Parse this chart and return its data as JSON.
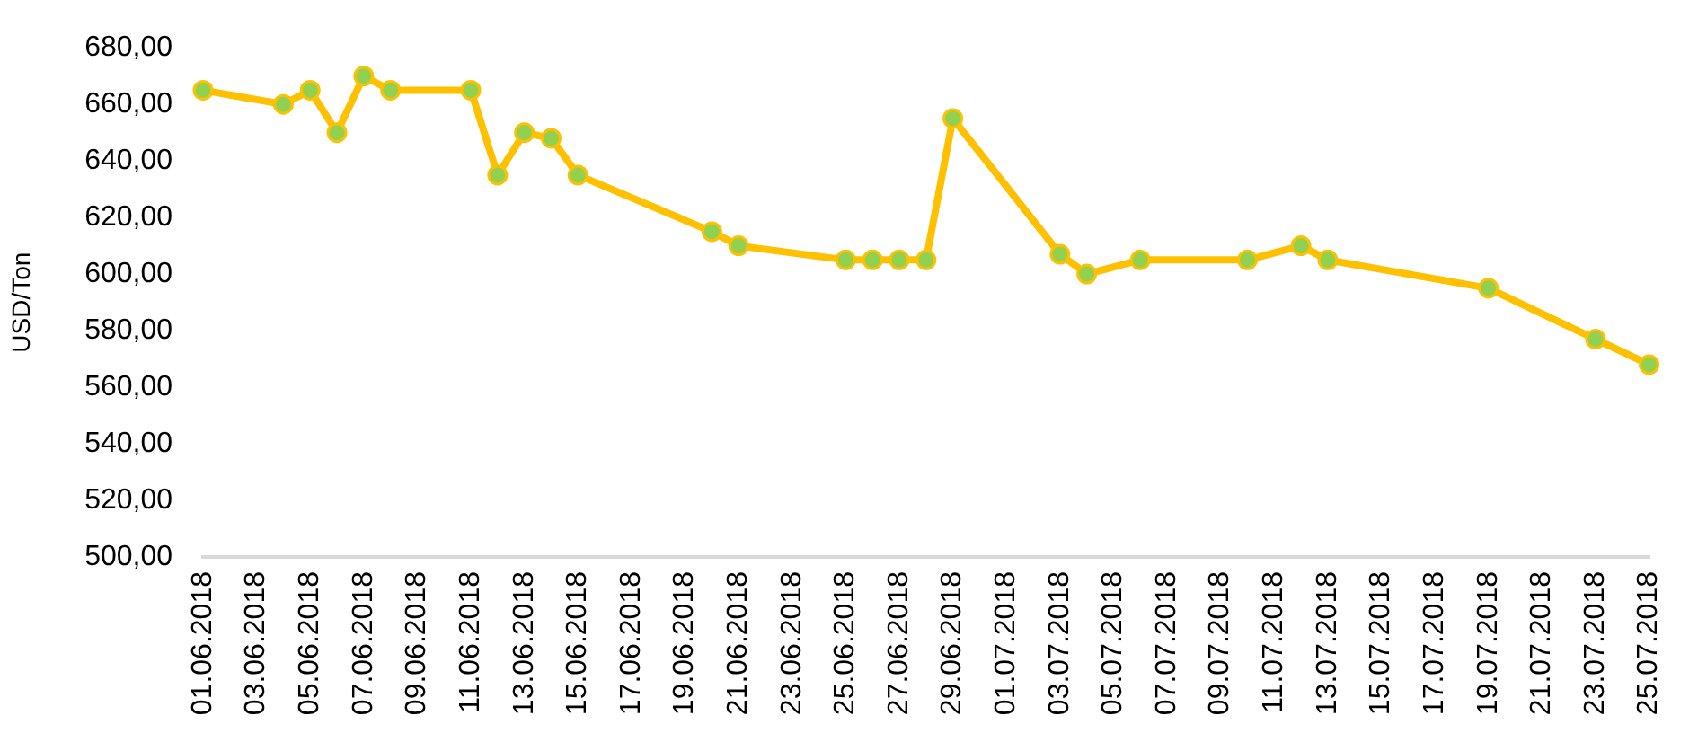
{
  "chart_data": {
    "type": "line",
    "ylabel": "USD/Ton",
    "x": [
      "2018-06-01",
      "2018-06-04",
      "2018-06-05",
      "2018-06-06",
      "2018-06-07",
      "2018-06-08",
      "2018-06-11",
      "2018-06-12",
      "2018-06-13",
      "2018-06-14",
      "2018-06-15",
      "2018-06-20",
      "2018-06-21",
      "2018-06-25",
      "2018-06-26",
      "2018-06-27",
      "2018-06-28",
      "2018-06-29",
      "2018-07-03",
      "2018-07-04",
      "2018-07-06",
      "2018-07-10",
      "2018-07-12",
      "2018-07-13",
      "2018-07-19",
      "2018-07-23",
      "2018-07-25"
    ],
    "values": [
      665,
      660,
      665,
      650,
      670,
      665,
      665,
      635,
      650,
      648,
      635,
      615,
      610,
      605,
      605,
      605,
      605,
      655,
      607,
      600,
      605,
      605,
      610,
      605,
      595,
      577,
      568
    ],
    "color": "#ffc000",
    "colors": [
      "#92d050",
      "#92d050",
      "#92d050",
      "#92d050",
      "#92d050",
      "#92d050",
      "#92d050",
      "#92d050",
      "#92d050",
      "#92d050",
      "#92d050",
      "#92d050",
      "#92d050",
      "#92d050",
      "#92d050",
      "#92d050",
      "#92d050",
      "#92d050",
      "#92d050",
      "#92d050",
      "#92d050",
      "#92d050",
      "#92d050",
      "#92d050",
      "#92d050",
      "#92d050",
      "#92d050"
    ],
    "marker": "circle",
    "xlim": [
      "2018-06-01",
      "2018-07-25"
    ],
    "xticks": [
      {
        "value": "2018-06-01",
        "label": "01.06.2018"
      },
      {
        "value": "2018-06-03",
        "label": "03.06.2018"
      },
      {
        "value": "2018-06-05",
        "label": "05.06.2018"
      },
      {
        "value": "2018-06-07",
        "label": "07.06.2018"
      },
      {
        "value": "2018-06-09",
        "label": "09.06.2018"
      },
      {
        "value": "2018-06-11",
        "label": "11.06.2018"
      },
      {
        "value": "2018-06-13",
        "label": "13.06.2018"
      },
      {
        "value": "2018-06-15",
        "label": "15.06.2018"
      },
      {
        "value": "2018-06-17",
        "label": "17.06.2018"
      },
      {
        "value": "2018-06-19",
        "label": "19.06.2018"
      },
      {
        "value": "2018-06-21",
        "label": "21.06.2018"
      },
      {
        "value": "2018-06-23",
        "label": "23.06.2018"
      },
      {
        "value": "2018-06-25",
        "label": "25.06.2018"
      },
      {
        "value": "2018-06-27",
        "label": "27.06.2018"
      },
      {
        "value": "2018-06-29",
        "label": "29.06.2018"
      },
      {
        "value": "2018-07-01",
        "label": "01.07.2018"
      },
      {
        "value": "2018-07-03",
        "label": "03.07.2018"
      },
      {
        "value": "2018-07-05",
        "label": "05.07.2018"
      },
      {
        "value": "2018-07-07",
        "label": "07.07.2018"
      },
      {
        "value": "2018-07-09",
        "label": "09.07.2018"
      },
      {
        "value": "2018-07-11",
        "label": "11.07.2018"
      },
      {
        "value": "2018-07-13",
        "label": "13.07.2018"
      },
      {
        "value": "2018-07-15",
        "label": "15.07.2018"
      },
      {
        "value": "2018-07-17",
        "label": "17.07.2018"
      },
      {
        "value": "2018-07-19",
        "label": "19.07.2018"
      },
      {
        "value": "2018-07-21",
        "label": "21.07.2018"
      },
      {
        "value": "2018-07-23",
        "label": "23.07.2018"
      },
      {
        "value": "2018-07-25",
        "label": "25.07.2018"
      }
    ],
    "ylim": [
      500,
      680
    ],
    "yticks": [
      {
        "value": 500,
        "label": "500,00"
      },
      {
        "value": 520,
        "label": "520,00"
      },
      {
        "value": 540,
        "label": "540,00"
      },
      {
        "value": 560,
        "label": "560,00"
      },
      {
        "value": 580,
        "label": "580,00"
      },
      {
        "value": 600,
        "label": "600,00"
      },
      {
        "value": 620,
        "label": "620,00"
      },
      {
        "value": 640,
        "label": "640,00"
      },
      {
        "value": 660,
        "label": "660,00"
      },
      {
        "value": 680,
        "label": "680,00"
      }
    ]
  }
}
